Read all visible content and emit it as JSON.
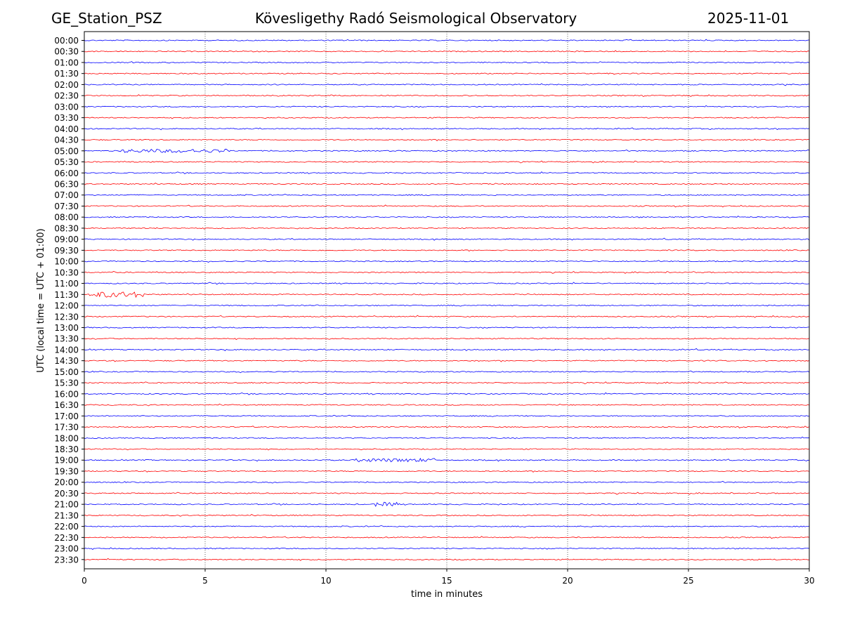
{
  "header": {
    "station": "GE_Station_PSZ",
    "title": "Kövesligethy Radó Seismological Observatory",
    "date": "2025-11-01"
  },
  "chart_data": {
    "type": "line",
    "title": "Kövesligethy Radó Seismological Observatory",
    "xlabel": "time in minutes",
    "ylabel": "UTC (local time = UTC + 01:00)",
    "xlim": [
      0,
      30
    ],
    "xticks": [
      0,
      5,
      10,
      15,
      20,
      25,
      30
    ],
    "grid": "vertical dotted at 5,10,15,20,25",
    "colors": [
      "#0000ff",
      "#ff0000"
    ],
    "rows": [
      "00:00",
      "00:30",
      "01:00",
      "01:30",
      "02:00",
      "02:30",
      "03:00",
      "03:30",
      "04:00",
      "04:30",
      "05:00",
      "05:30",
      "06:00",
      "06:30",
      "07:00",
      "07:30",
      "08:00",
      "08:30",
      "09:00",
      "09:30",
      "10:00",
      "10:30",
      "11:00",
      "11:30",
      "12:00",
      "12:30",
      "13:00",
      "13:30",
      "14:00",
      "14:30",
      "15:00",
      "15:30",
      "16:00",
      "16:30",
      "17:00",
      "17:30",
      "18:00",
      "18:30",
      "19:00",
      "19:30",
      "20:00",
      "20:30",
      "21:00",
      "21:30",
      "22:00",
      "22:30",
      "23:00",
      "23:30"
    ],
    "events": [
      {
        "row": "05:00",
        "start_min": 1.5,
        "end_min": 6.0,
        "amplitude": 2.5
      },
      {
        "row": "11:30",
        "start_min": 0.2,
        "end_min": 2.5,
        "amplitude": 4.0
      },
      {
        "row": "19:00",
        "start_min": 11.2,
        "end_min": 14.5,
        "amplitude": 2.5
      },
      {
        "row": "21:00",
        "start_min": 12.0,
        "end_min": 13.0,
        "amplitude": 3.0
      }
    ]
  }
}
